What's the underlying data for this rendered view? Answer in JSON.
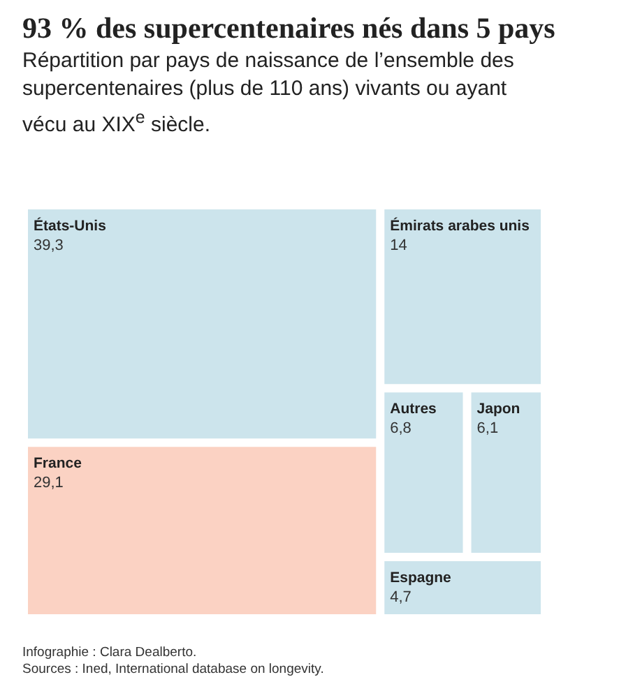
{
  "chart_data": {
    "type": "other",
    "title": "93 % des supercentenaires nés dans 5 pays",
    "subtitle": "Répartition par pays de naissance de l’ensemble des supercentenaires (plus de 110 ans) vivants ou ayant vécu au XIX$^{e}$ siècle.",
    "categories": [
      "États-Unis",
      "France",
      "Émirats arabes unis",
      "Japon",
      "Espagne",
      "Autres"
    ],
    "values": [
      39.3,
      29.1,
      14,
      6.1,
      4.7,
      6.8
    ],
    "value_labels": [
      "39,3",
      "29,1",
      "14",
      "6,1",
      "4,7",
      "6,8"
    ],
    "colors": [
      "#cce4ec",
      "#fbd2c3",
      "#cce4ec",
      "#cce4ec",
      "#cce4ec",
      "#cce4ec"
    ],
    "annotations": [
      "Infographie : Clara Dealberto.",
      "Sources : Ined, International database on longevity."
    ]
  }
}
